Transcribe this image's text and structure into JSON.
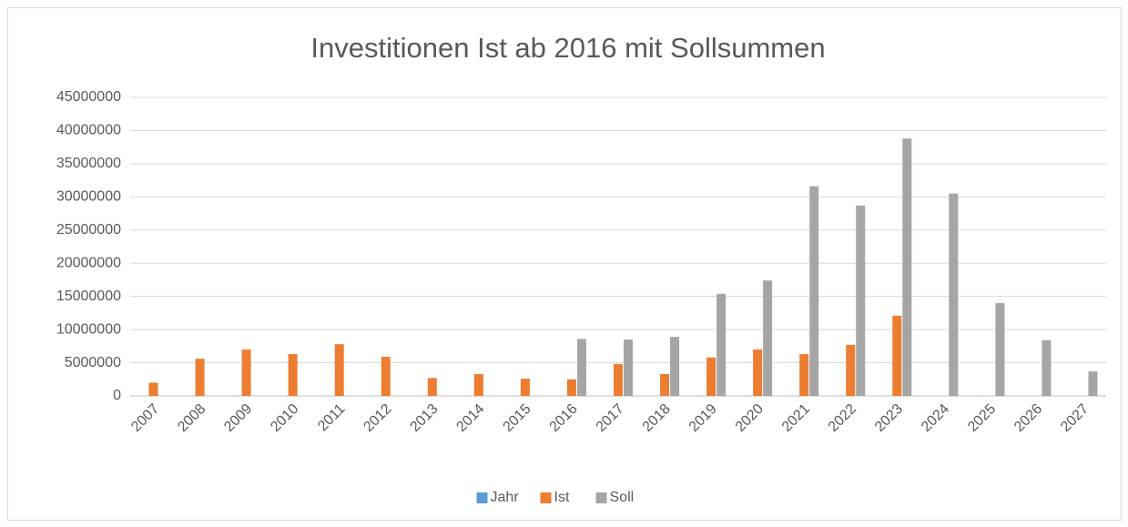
{
  "chart_data": {
    "type": "bar",
    "title": "Investitionen Ist ab 2016 mit Sollsummen",
    "categories": [
      "2007",
      "2008",
      "2009",
      "2010",
      "2011",
      "2012",
      "2013",
      "2014",
      "2015",
      "2016",
      "2017",
      "2018",
      "2019",
      "2020",
      "2021",
      "2022",
      "2023",
      "2024",
      "2025",
      "2026",
      "2027"
    ],
    "series": [
      {
        "name": "Jahr",
        "color": "#5b9bd5",
        "values": [
          2007,
          2008,
          2009,
          2010,
          2011,
          2012,
          2013,
          2014,
          2015,
          2016,
          2017,
          2018,
          2019,
          2020,
          2021,
          2022,
          2023,
          2024,
          2025,
          2026,
          2027
        ]
      },
      {
        "name": "Ist",
        "color": "#ed7d31",
        "values": [
          2000000,
          5600000,
          7000000,
          6300000,
          7800000,
          5900000,
          2700000,
          3300000,
          2600000,
          2500000,
          4800000,
          3300000,
          5800000,
          7000000,
          6300000,
          7700000,
          12100000,
          null,
          null,
          null,
          null
        ]
      },
      {
        "name": "Soll",
        "color": "#a5a5a5",
        "values": [
          null,
          null,
          null,
          null,
          null,
          null,
          null,
          null,
          null,
          8600000,
          8500000,
          8900000,
          15400000,
          17400000,
          31600000,
          28700000,
          38800000,
          30500000,
          14000000,
          8400000,
          3700000
        ]
      }
    ],
    "ylim": [
      0,
      45000000
    ],
    "yticks": [
      0,
      5000000,
      10000000,
      15000000,
      20000000,
      25000000,
      30000000,
      35000000,
      40000000,
      45000000
    ],
    "grid": true,
    "legend": "bottom"
  }
}
